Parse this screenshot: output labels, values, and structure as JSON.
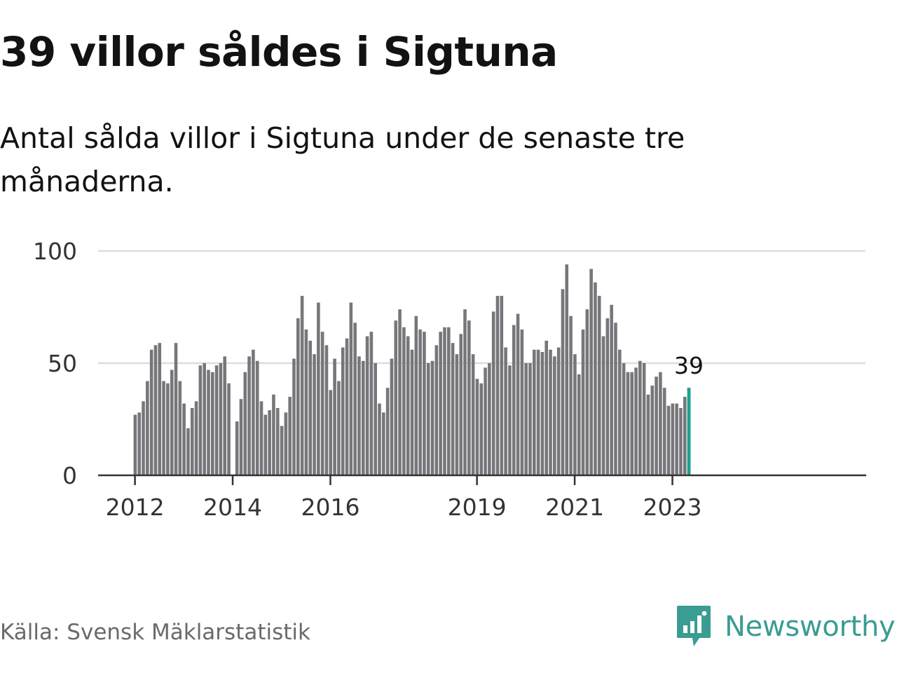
{
  "title": "39 villor såldes i Sigtuna",
  "subtitle": "Antal sålda villor i Sigtuna under de senaste tre månaderna.",
  "source": "Källa: Svensk Mäklarstatistik",
  "brand": {
    "name": "Newsworthy",
    "logo_icon": "newsworthy-chart-bubble-icon"
  },
  "colors": {
    "bar": "#77767b",
    "highlight": "#1aa194",
    "grid": "#dddddd",
    "axis": "#333333",
    "brand": "#3a9c93"
  },
  "chart_data": {
    "type": "bar",
    "title": "Antal sålda villor i Sigtuna",
    "ylim": [
      0,
      100
    ],
    "yticks": [
      0,
      50,
      100
    ],
    "xticks": [
      {
        "label": "2012",
        "index": 0
      },
      {
        "label": "2014",
        "index": 24
      },
      {
        "label": "2016",
        "index": 48
      },
      {
        "label": "2019",
        "index": 84
      },
      {
        "label": "2021",
        "index": 108
      },
      {
        "label": "2023",
        "index": 132
      }
    ],
    "series": [
      {
        "values": [
          27,
          28,
          33,
          42,
          56,
          58,
          59,
          42,
          41,
          47,
          59,
          42,
          32,
          21,
          30,
          33,
          49,
          50,
          47,
          46,
          49,
          50,
          53,
          41,
          null,
          24,
          34,
          46,
          53,
          56,
          51,
          33,
          27,
          29,
          36,
          30,
          22,
          28,
          35,
          52,
          70,
          80,
          65,
          60,
          54,
          77,
          64,
          58,
          38,
          52,
          42,
          57,
          61,
          77,
          68,
          53,
          51,
          62,
          64,
          50,
          32,
          28,
          39,
          52,
          69,
          74,
          66,
          62,
          56,
          71,
          65,
          64,
          50,
          51,
          58,
          64,
          66,
          66,
          59,
          54,
          63,
          74,
          69,
          54,
          43,
          41,
          48,
          50,
          73,
          80,
          80,
          57,
          49,
          67,
          72,
          65,
          50,
          50,
          56,
          56,
          55,
          60,
          56,
          53,
          57,
          83,
          94,
          71,
          54,
          45,
          65,
          74,
          92,
          86,
          80,
          62,
          70,
          76,
          68,
          56,
          50,
          46,
          46,
          48,
          51,
          50,
          36,
          40,
          44,
          46,
          39,
          31,
          32,
          32,
          30,
          35,
          39
        ]
      }
    ],
    "highlight": {
      "index": 136,
      "value": 39,
      "label": "39"
    },
    "grid": true
  }
}
